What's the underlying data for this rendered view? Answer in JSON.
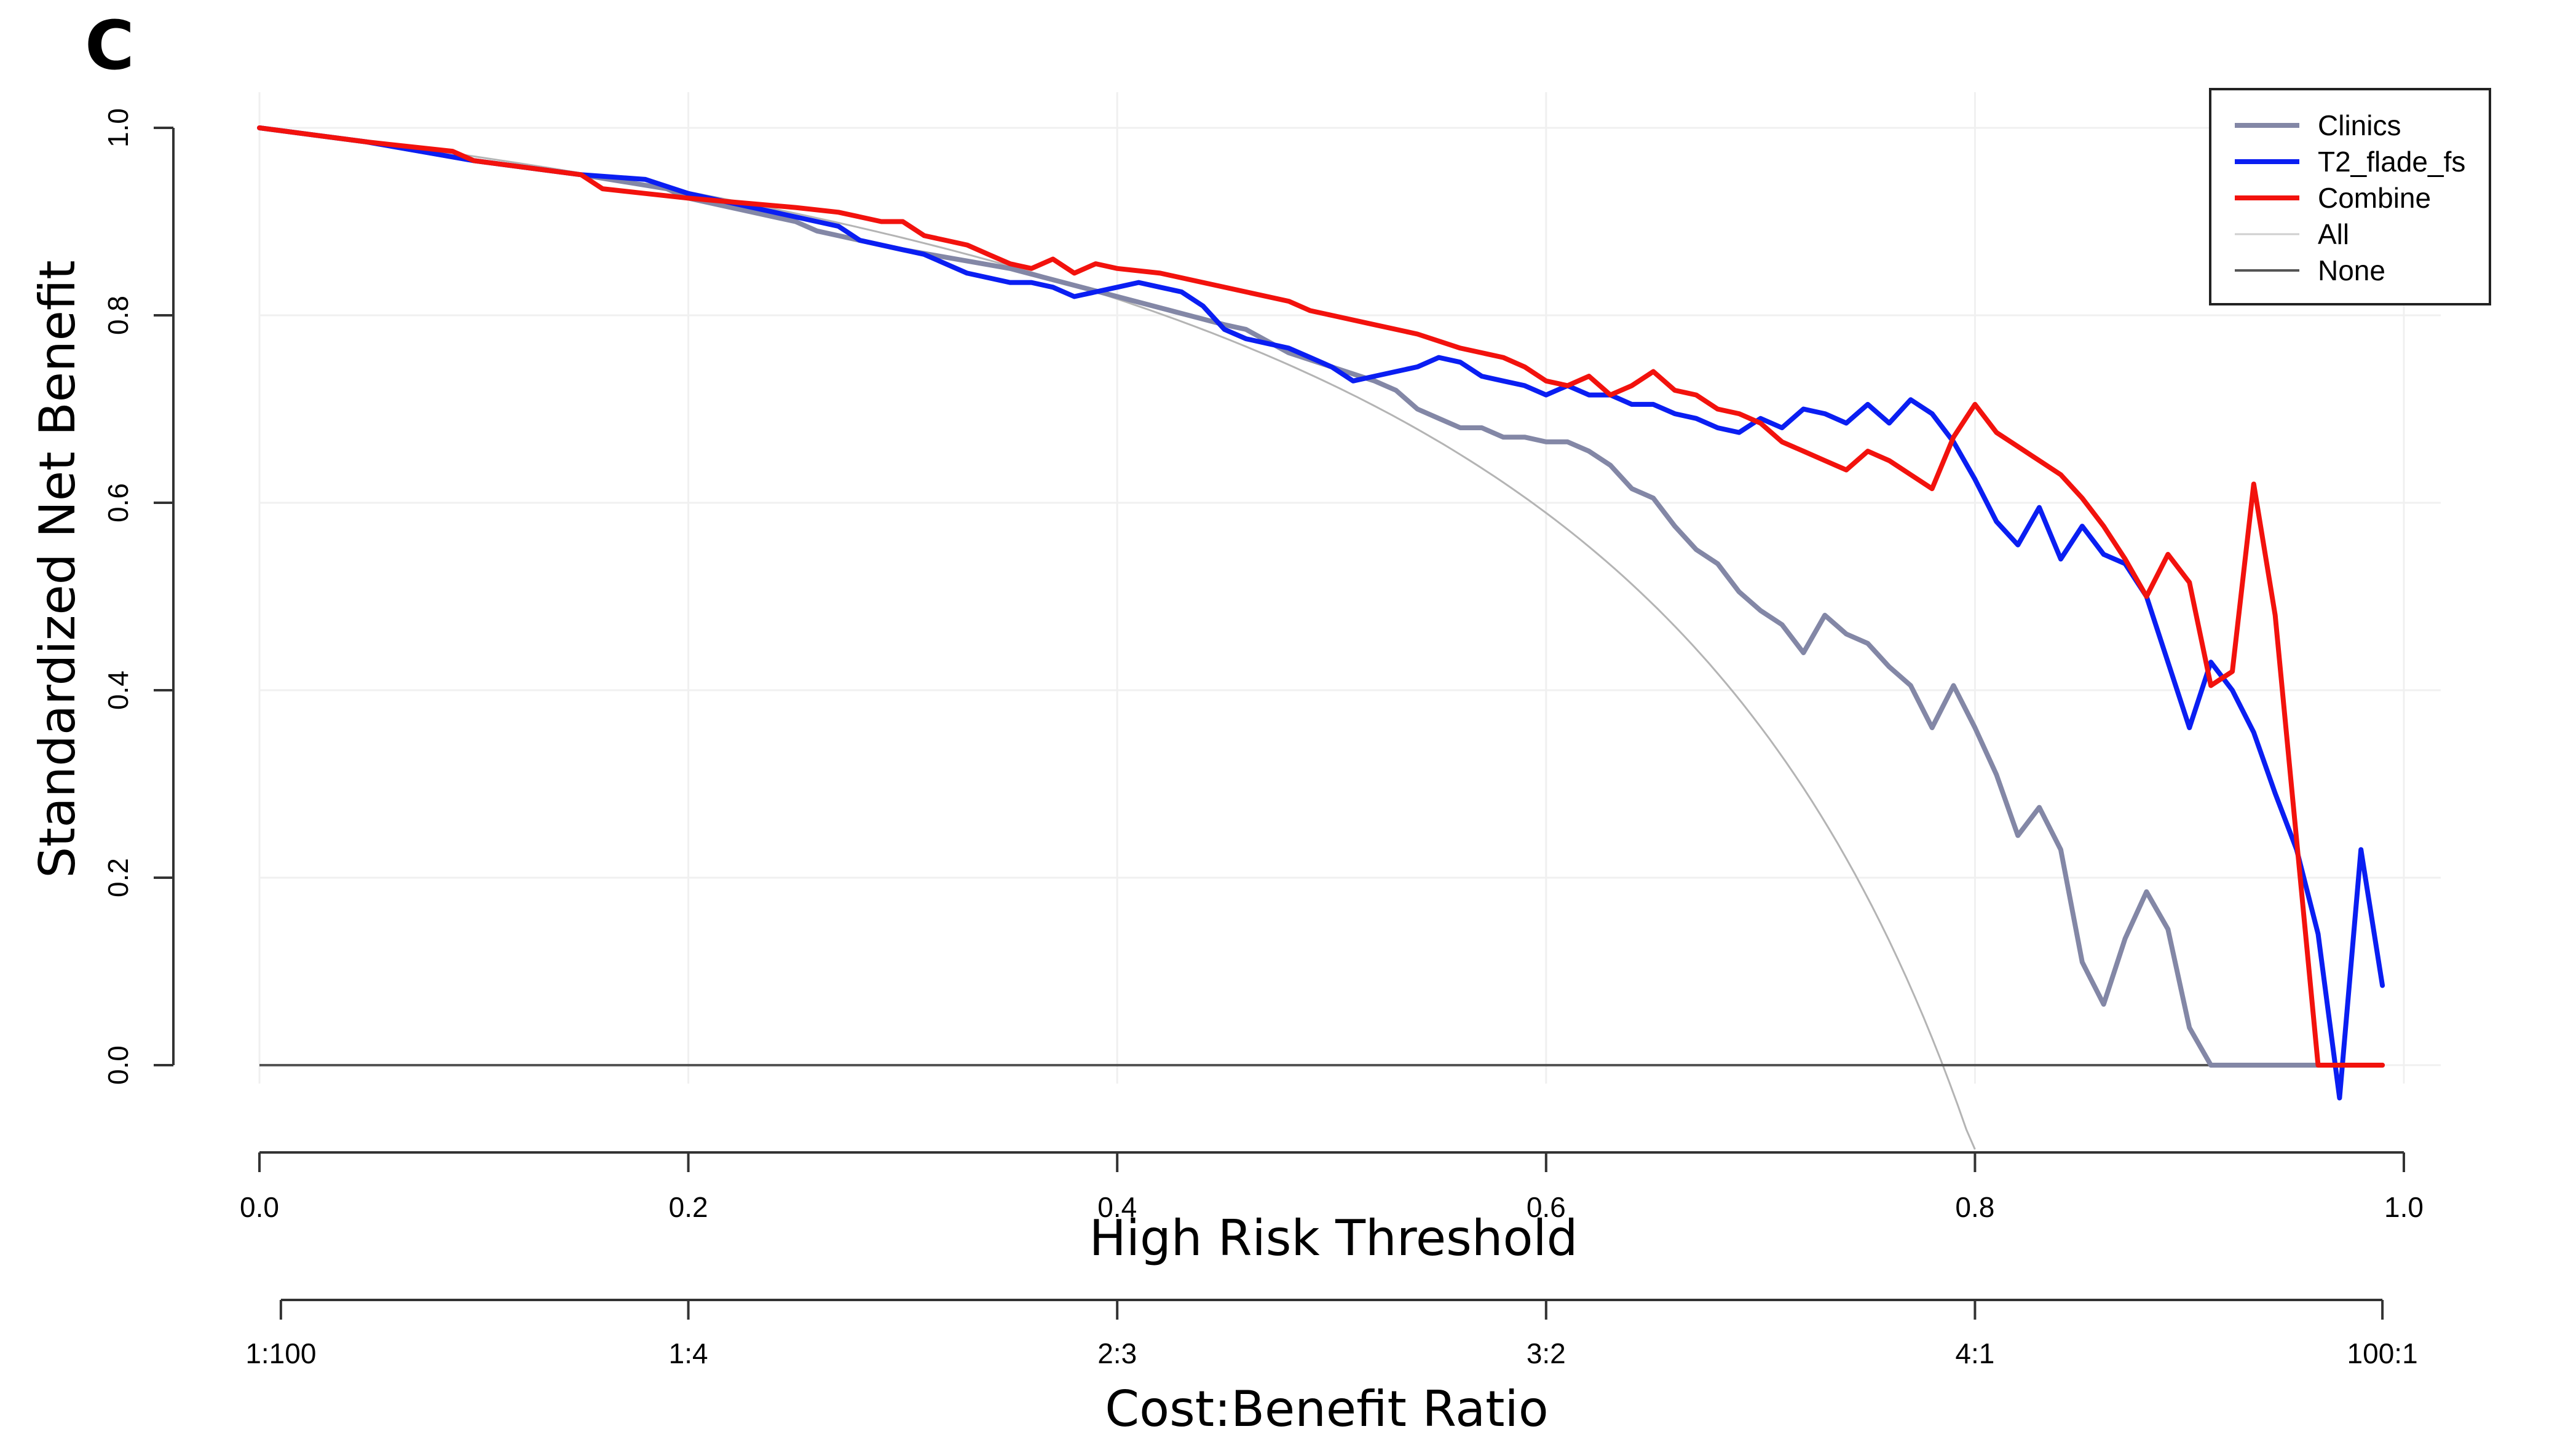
{
  "panel_label": "C",
  "chart_data": {
    "type": "line",
    "title": "",
    "xlabel": "High Risk Threshold",
    "ylabel": "Standardized Net Benefit",
    "secondary_xlabel": "Cost:Benefit Ratio",
    "xlim": [
      0,
      1
    ],
    "ylim": [
      -0.05,
      1.0
    ],
    "x_ticks": [
      0.0,
      0.2,
      0.4,
      0.6,
      0.8,
      1.0
    ],
    "x_tick_labels": [
      "0.0",
      "0.2",
      "0.4",
      "0.6",
      "0.8",
      "1.0"
    ],
    "y_ticks": [
      0.0,
      0.2,
      0.4,
      0.6,
      0.8,
      1.0
    ],
    "y_tick_labels": [
      "0.0",
      "0.2",
      "0.4",
      "0.6",
      "0.8",
      "1.0"
    ],
    "secondary_x_ticks": [
      0.01,
      0.2,
      0.4,
      0.6,
      0.8,
      0.99
    ],
    "secondary_x_tick_labels": [
      "1:100",
      "1:4",
      "2:3",
      "3:2",
      "4:1",
      "100:1"
    ],
    "legend_position": "top-right",
    "grid": true,
    "prevalence": 0.785,
    "series": [
      {
        "name": "Clinics",
        "color": "#8387A6",
        "x": [
          0.0,
          0.05,
          0.1,
          0.15,
          0.19,
          0.2,
          0.25,
          0.26,
          0.3,
          0.35,
          0.4,
          0.45,
          0.46,
          0.48,
          0.5,
          0.52,
          0.53,
          0.54,
          0.55,
          0.56,
          0.57,
          0.58,
          0.59,
          0.6,
          0.61,
          0.62,
          0.63,
          0.64,
          0.65,
          0.66,
          0.67,
          0.68,
          0.69,
          0.7,
          0.71,
          0.72,
          0.73,
          0.74,
          0.75,
          0.76,
          0.77,
          0.78,
          0.79,
          0.8,
          0.81,
          0.82,
          0.83,
          0.84,
          0.85,
          0.86,
          0.87,
          0.88,
          0.89,
          0.9,
          0.91,
          0.92,
          0.95,
          0.99
        ],
        "y": [
          1.0,
          0.985,
          0.965,
          0.95,
          0.935,
          0.925,
          0.9,
          0.89,
          0.87,
          0.85,
          0.82,
          0.79,
          0.785,
          0.76,
          0.745,
          0.73,
          0.72,
          0.7,
          0.69,
          0.68,
          0.68,
          0.67,
          0.67,
          0.665,
          0.665,
          0.655,
          0.64,
          0.615,
          0.605,
          0.575,
          0.55,
          0.535,
          0.505,
          0.485,
          0.47,
          0.44,
          0.48,
          0.46,
          0.45,
          0.425,
          0.405,
          0.36,
          0.405,
          0.36,
          0.31,
          0.245,
          0.275,
          0.23,
          0.11,
          0.065,
          0.135,
          0.185,
          0.145,
          0.04,
          0.0,
          0.0,
          0.0,
          0.0
        ]
      },
      {
        "name": "T2_flade_fs",
        "color": "#0A1EF2",
        "x": [
          0.0,
          0.05,
          0.1,
          0.15,
          0.18,
          0.2,
          0.25,
          0.26,
          0.27,
          0.28,
          0.3,
          0.31,
          0.33,
          0.35,
          0.36,
          0.37,
          0.38,
          0.39,
          0.4,
          0.41,
          0.42,
          0.43,
          0.44,
          0.45,
          0.46,
          0.47,
          0.48,
          0.49,
          0.5,
          0.51,
          0.52,
          0.53,
          0.54,
          0.55,
          0.56,
          0.57,
          0.58,
          0.59,
          0.6,
          0.61,
          0.62,
          0.63,
          0.64,
          0.65,
          0.66,
          0.67,
          0.68,
          0.69,
          0.7,
          0.71,
          0.72,
          0.73,
          0.74,
          0.75,
          0.76,
          0.77,
          0.78,
          0.79,
          0.8,
          0.81,
          0.82,
          0.83,
          0.84,
          0.85,
          0.86,
          0.87,
          0.88,
          0.89,
          0.9,
          0.91,
          0.92,
          0.93,
          0.94,
          0.95,
          0.96,
          0.97,
          0.98,
          0.99
        ],
        "y": [
          1.0,
          0.985,
          0.965,
          0.95,
          0.945,
          0.93,
          0.905,
          0.9,
          0.895,
          0.88,
          0.87,
          0.865,
          0.845,
          0.835,
          0.835,
          0.83,
          0.82,
          0.825,
          0.83,
          0.835,
          0.83,
          0.825,
          0.81,
          0.785,
          0.775,
          0.77,
          0.765,
          0.755,
          0.745,
          0.73,
          0.735,
          0.74,
          0.745,
          0.755,
          0.75,
          0.735,
          0.73,
          0.725,
          0.715,
          0.725,
          0.715,
          0.715,
          0.705,
          0.705,
          0.695,
          0.69,
          0.68,
          0.675,
          0.69,
          0.68,
          0.7,
          0.695,
          0.685,
          0.705,
          0.685,
          0.71,
          0.695,
          0.665,
          0.625,
          0.58,
          0.555,
          0.595,
          0.54,
          0.575,
          0.545,
          0.535,
          0.5,
          0.43,
          0.36,
          0.43,
          0.4,
          0.355,
          0.29,
          0.23,
          0.14,
          -0.035,
          0.23,
          0.085
        ]
      },
      {
        "name": "Combine",
        "color": "#F2120D",
        "x": [
          0.0,
          0.05,
          0.09,
          0.1,
          0.15,
          0.16,
          0.18,
          0.2,
          0.25,
          0.27,
          0.28,
          0.29,
          0.3,
          0.31,
          0.32,
          0.33,
          0.34,
          0.35,
          0.36,
          0.37,
          0.38,
          0.39,
          0.4,
          0.42,
          0.44,
          0.46,
          0.48,
          0.49,
          0.5,
          0.52,
          0.54,
          0.56,
          0.58,
          0.59,
          0.6,
          0.61,
          0.62,
          0.63,
          0.64,
          0.65,
          0.66,
          0.67,
          0.68,
          0.69,
          0.7,
          0.71,
          0.72,
          0.73,
          0.74,
          0.75,
          0.76,
          0.77,
          0.78,
          0.79,
          0.8,
          0.81,
          0.82,
          0.83,
          0.84,
          0.85,
          0.86,
          0.87,
          0.88,
          0.89,
          0.9,
          0.91,
          0.92,
          0.93,
          0.94,
          0.95,
          0.96,
          0.97,
          0.98,
          0.99
        ],
        "y": [
          1.0,
          0.985,
          0.975,
          0.965,
          0.95,
          0.935,
          0.93,
          0.925,
          0.915,
          0.91,
          0.905,
          0.9,
          0.9,
          0.885,
          0.88,
          0.875,
          0.865,
          0.855,
          0.85,
          0.86,
          0.845,
          0.855,
          0.85,
          0.845,
          0.835,
          0.825,
          0.815,
          0.805,
          0.8,
          0.79,
          0.78,
          0.765,
          0.755,
          0.745,
          0.73,
          0.725,
          0.735,
          0.715,
          0.725,
          0.74,
          0.72,
          0.715,
          0.7,
          0.695,
          0.685,
          0.665,
          0.655,
          0.645,
          0.635,
          0.655,
          0.645,
          0.63,
          0.615,
          0.67,
          0.705,
          0.675,
          0.66,
          0.645,
          0.63,
          0.605,
          0.575,
          0.54,
          0.5,
          0.545,
          0.515,
          0.405,
          0.42,
          0.62,
          0.48,
          0.24,
          0.0,
          0.0,
          0.0,
          0.0
        ]
      }
    ]
  }
}
